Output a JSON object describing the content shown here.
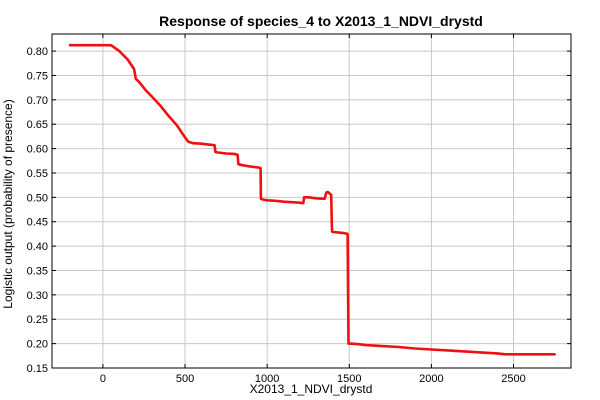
{
  "chart_data": {
    "type": "line",
    "title": "Response of species_4 to X2013_1_NDVI_drystd",
    "xlabel": "X2013_1_NDVI_drystd",
    "ylabel": "Logistic output (probability of presence)",
    "xlim": [
      -310,
      2850
    ],
    "ylim": [
      0.15,
      0.835
    ],
    "xticks": [
      0,
      500,
      1000,
      1500,
      2000,
      2500
    ],
    "yticks": [
      0.15,
      0.2,
      0.25,
      0.3,
      0.35,
      0.4,
      0.45,
      0.5,
      0.55,
      0.6,
      0.65,
      0.7,
      0.75,
      0.8
    ],
    "xtick_labels": [
      "0",
      "500",
      "1000",
      "1500",
      "2000",
      "2500"
    ],
    "ytick_labels": [
      "0.15",
      "0.20",
      "0.25",
      "0.30",
      "0.35",
      "0.40",
      "0.45",
      "0.50",
      "0.55",
      "0.60",
      "0.65",
      "0.70",
      "0.75",
      "0.80"
    ],
    "grid": true,
    "series": [
      {
        "color": "#ee1111",
        "x": [
          -200,
          50,
          100,
          150,
          190,
          200,
          220,
          260,
          300,
          350,
          400,
          450,
          500,
          520,
          550,
          600,
          650,
          680,
          685,
          700,
          750,
          800,
          820,
          825,
          850,
          900,
          950,
          960,
          962,
          980,
          1000,
          1050,
          1100,
          1150,
          1200,
          1220,
          1225,
          1250,
          1300,
          1350,
          1360,
          1370,
          1380,
          1390,
          1395,
          1400,
          1430,
          1460,
          1490,
          1495,
          1500,
          1550,
          1600,
          1700,
          1800,
          1900,
          2000,
          2100,
          2200,
          2300,
          2400,
          2450,
          2500,
          2600,
          2700,
          2750
        ],
        "y": [
          0.812,
          0.812,
          0.8,
          0.783,
          0.763,
          0.743,
          0.737,
          0.72,
          0.706,
          0.688,
          0.667,
          0.648,
          0.623,
          0.614,
          0.611,
          0.61,
          0.608,
          0.607,
          0.593,
          0.592,
          0.59,
          0.589,
          0.587,
          0.568,
          0.566,
          0.563,
          0.561,
          0.56,
          0.497,
          0.495,
          0.494,
          0.493,
          0.491,
          0.49,
          0.489,
          0.488,
          0.5,
          0.5,
          0.498,
          0.497,
          0.51,
          0.511,
          0.508,
          0.505,
          0.43,
          0.429,
          0.428,
          0.427,
          0.425,
          0.2,
          0.2,
          0.199,
          0.197,
          0.195,
          0.193,
          0.19,
          0.188,
          0.186,
          0.184,
          0.182,
          0.18,
          0.178,
          0.178,
          0.178,
          0.178,
          0.178
        ]
      }
    ]
  }
}
